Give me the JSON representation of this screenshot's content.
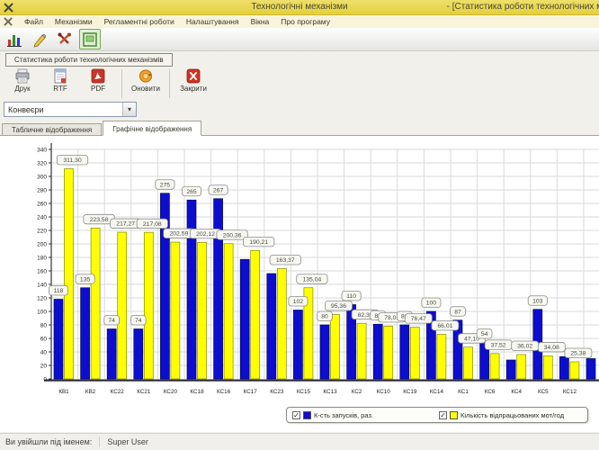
{
  "window": {
    "title": "Технологічні механізми",
    "title_right": "- [Статистика роботи технологічних м",
    "menu": [
      "Файл",
      "Механізми",
      "Регламентні роботи",
      "Налаштування",
      "Вікна",
      "Про програму"
    ],
    "status": {
      "label": "Ви увійшли під іменем:",
      "user": "Super User"
    }
  },
  "panel": {
    "tab_title": "Статистика роботи технологічних механізмів",
    "buttons": [
      {
        "label": "Друк",
        "icon": "printer-icon"
      },
      {
        "label": "RTF",
        "icon": "rtf-document-icon"
      },
      {
        "label": "PDF",
        "icon": "pdf-icon"
      },
      {
        "label": "Оновити",
        "icon": "refresh-icon"
      },
      {
        "label": "Закрити",
        "icon": "close-icon"
      }
    ],
    "combo": {
      "value": "Конвеєри"
    },
    "tabs": [
      {
        "label": "Табличне відображення",
        "active": false
      },
      {
        "label": "Графічне відображення",
        "active": true
      }
    ]
  },
  "chart_data": {
    "type": "bar",
    "categories": [
      "КВ1",
      "КВ2",
      "КС22",
      "КС21",
      "КС20",
      "КС18",
      "КС16",
      "КС17",
      "КС23",
      "КС15",
      "КС13",
      "КС2",
      "КС10",
      "КС19",
      "КС14",
      "КС1",
      "КС6",
      "КС4",
      "КС5",
      "КС12"
    ],
    "series": [
      {
        "name": "К-сть запусків, раз.",
        "color": "#0d0dd0",
        "values": [
          118,
          135,
          74,
          74,
          275,
          265,
          267,
          177,
          156,
          102,
          80,
          110,
          81,
          80,
          100,
          87,
          54,
          28,
          103,
          33
        ],
        "labels": [
          "118",
          "135",
          "74",
          "74",
          "275",
          "265",
          "267",
          null,
          null,
          "102",
          "80",
          "110",
          "81",
          "80",
          "100",
          "87",
          "54",
          null,
          "103",
          null
        ]
      },
      {
        "name": "Кількість відпрацьованих мот/год",
        "color": "#ffff00",
        "values": [
          311.3,
          223.58,
          217.27,
          217.08,
          202.59,
          202.12,
          200.36,
          190.21,
          163.37,
          135.04,
          95.36,
          82.39,
          78.01,
          76.47,
          66.01,
          47.1,
          37.52,
          36.02,
          34.08,
          25.38
        ],
        "labels": [
          "311,30",
          "223,58",
          "217,27",
          "217,08",
          "202,59",
          "202,12",
          "200,36",
          "190,21",
          "163,37",
          "135,04",
          "95,36",
          "82,39",
          "78,01",
          "76,47",
          "66,01",
          "47,10",
          "37,52",
          "36,02",
          "34,08",
          "25,38"
        ]
      }
    ],
    "partial_next_blue": 30,
    "ylim": [
      0,
      340
    ],
    "ytick_step": 20,
    "grid": true,
    "legend_position": "bottom"
  },
  "legend": {
    "items": [
      {
        "label": "К-сть запусків, раз.",
        "color": "#0d0dd0",
        "checked": true
      },
      {
        "label": "Кількість відпрацьованих мот/год",
        "color": "#ffff00",
        "checked": true
      }
    ]
  },
  "colors": {
    "titlebar": "#e6d44a",
    "bar_blue": "#0d0dd0",
    "bar_yellow": "#ffff00"
  }
}
